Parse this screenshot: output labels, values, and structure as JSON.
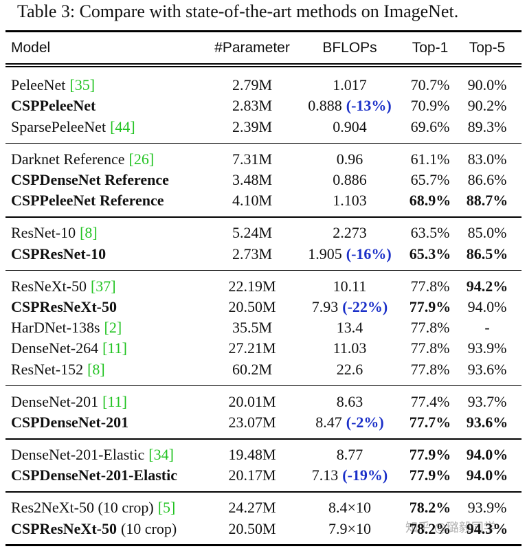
{
  "caption": "Table 3: Compare with state-of-the-art methods on ImageNet.",
  "header": [
    "Model",
    "#Parameter",
    "BFLOPs",
    "Top-1",
    "Top-5"
  ],
  "groups": [
    {
      "rows": [
        {
          "model": "PeleeNet",
          "cite": "[35]",
          "params": "2.79M",
          "bflops": "1.017",
          "top1": "70.7%",
          "top5": "90.0%"
        },
        {
          "model": "CSPPeleeNet",
          "model_bold": true,
          "params": "2.83M",
          "bflops": "0.888",
          "delta": "(-13%)",
          "top1": "70.9%",
          "top5": "90.2%"
        },
        {
          "model": "SparsePeleeNet",
          "cite": "[44]",
          "params": "2.39M",
          "bflops": "0.904",
          "top1": "69.6%",
          "top5": "89.3%"
        }
      ]
    },
    {
      "rows": [
        {
          "model": "Darknet Reference",
          "cite": "[26]",
          "params": "7.31M",
          "bflops": "0.96",
          "top1": "61.1%",
          "top5": "83.0%"
        },
        {
          "model": "CSPDenseNet Reference",
          "model_bold": true,
          "params": "3.48M",
          "bflops": "0.886",
          "top1": "65.7%",
          "top5": "86.6%"
        },
        {
          "model": "CSPPeleeNet Reference",
          "model_bold": true,
          "params": "4.10M",
          "bflops": "1.103",
          "top1": "68.9%",
          "top1_bold": true,
          "top5": "88.7%",
          "top5_bold": true
        }
      ]
    },
    {
      "rows": [
        {
          "model": "ResNet-10",
          "cite": "[8]",
          "params": "5.24M",
          "bflops": "2.273",
          "top1": "63.5%",
          "top5": "85.0%"
        },
        {
          "model": "CSPResNet-10",
          "model_bold": true,
          "params": "2.73M",
          "bflops": "1.905",
          "delta": "(-16%)",
          "top1": "65.3%",
          "top1_bold": true,
          "top5": "86.5%",
          "top5_bold": true
        }
      ]
    },
    {
      "rows": [
        {
          "model": "ResNeXt-50",
          "cite": "[37]",
          "params": "22.19M",
          "bflops": "10.11",
          "top1": "77.8%",
          "top5": "94.2%",
          "top5_bold": true
        },
        {
          "model": "CSPResNeXt-50",
          "model_bold": true,
          "params": "20.50M",
          "bflops": "7.93",
          "delta": "(-22%)",
          "top1": "77.9%",
          "top1_bold": true,
          "top5": "94.0%"
        },
        {
          "model": "HarDNet-138s",
          "cite": "[2]",
          "params": "35.5M",
          "bflops": "13.4",
          "top1": "77.8%",
          "top5": "-"
        },
        {
          "model": "DenseNet-264",
          "cite": "[11]",
          "params": "27.21M",
          "bflops": "11.03",
          "top1": "77.8%",
          "top5": "93.9%"
        },
        {
          "model": "ResNet-152",
          "cite": "[8]",
          "params": "60.2M",
          "bflops": "22.6",
          "top1": "77.8%",
          "top5": "93.6%"
        }
      ]
    },
    {
      "rows": [
        {
          "model": "DenseNet-201",
          "cite": "[11]",
          "params": "20.01M",
          "bflops": "8.63",
          "top1": "77.4%",
          "top5": "93.7%"
        },
        {
          "model": "CSPDenseNet-201",
          "model_bold": true,
          "params": "23.07M",
          "bflops": "8.47",
          "delta": "(-2%)",
          "top1": "77.7%",
          "top1_bold": true,
          "top5": "93.6%",
          "top5_bold": true
        }
      ]
    },
    {
      "rows": [
        {
          "model": "DenseNet-201-Elastic",
          "cite": "[34]",
          "params": "19.48M",
          "bflops": "8.77",
          "top1": "77.9%",
          "top1_bold": true,
          "top5": "94.0%",
          "top5_bold": true
        },
        {
          "model": "CSPDenseNet-201-Elastic",
          "model_bold": true,
          "params": "20.17M",
          "bflops": "7.13",
          "delta": "(-19%)",
          "top1": "77.9%",
          "top1_bold": true,
          "top5": "94.0%",
          "top5_bold": true
        }
      ]
    },
    {
      "rows": [
        {
          "model": "Res2NeXt-50 (10 crop)",
          "cite": "[5]",
          "params": "24.27M",
          "bflops": "8.4×10",
          "top1": "78.2%",
          "top1_bold": true,
          "top5": "93.9%"
        },
        {
          "model": "CSPResNeXt-50",
          "model_bold": true,
          "model_note": "(10 crop)",
          "params": "20.50M",
          "bflops": "7.9×10",
          "top1": "78.2%",
          "top1_bold": true,
          "top5": "94.3%",
          "top5_bold": true
        }
      ]
    }
  ],
  "watermark": "知乎 @璐毅同学"
}
